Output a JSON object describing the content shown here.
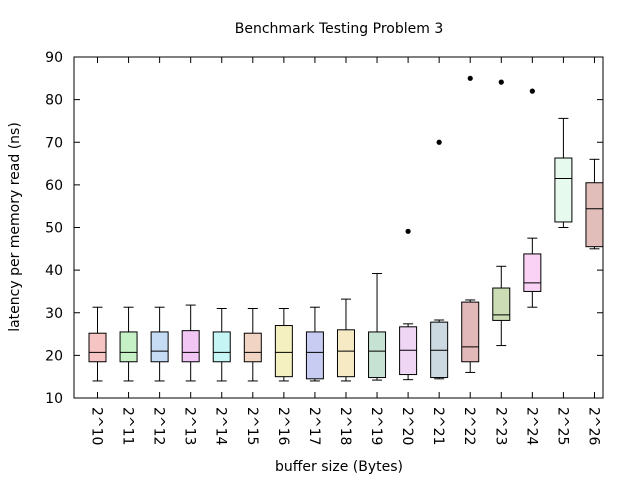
{
  "chart_data": {
    "type": "boxplot",
    "title": "Benchmark Testing Problem 3",
    "xlabel": "buffer size (Bytes)",
    "ylabel": "latency per memory read (ns)",
    "ylim": [
      10,
      90
    ],
    "yticks": [
      10,
      20,
      30,
      40,
      50,
      60,
      70,
      80,
      90
    ],
    "grid": false,
    "categories": [
      "2^10",
      "2^11",
      "2^12",
      "2^13",
      "2^14",
      "2^15",
      "2^16",
      "2^17",
      "2^18",
      "2^19",
      "2^20",
      "2^21",
      "2^22",
      "2^23",
      "2^24",
      "2^25",
      "2^26"
    ],
    "boxes": [
      {
        "whisker_low": 14.0,
        "q1": 18.5,
        "median": 20.7,
        "q3": 25.2,
        "whisker_high": 31.3,
        "outliers": [],
        "color": "#f7c4c4"
      },
      {
        "whisker_low": 14.0,
        "q1": 18.5,
        "median": 20.7,
        "q3": 25.5,
        "whisker_high": 31.3,
        "outliers": [],
        "color": "#c6f0c6"
      },
      {
        "whisker_low": 14.0,
        "q1": 18.5,
        "median": 21.0,
        "q3": 25.5,
        "whisker_high": 31.3,
        "outliers": [],
        "color": "#c6dcf5"
      },
      {
        "whisker_low": 14.0,
        "q1": 18.5,
        "median": 20.7,
        "q3": 25.8,
        "whisker_high": 31.8,
        "outliers": [],
        "color": "#f1c6f5"
      },
      {
        "whisker_low": 14.0,
        "q1": 18.5,
        "median": 20.7,
        "q3": 25.5,
        "whisker_high": 31.0,
        "outliers": [],
        "color": "#c6f5f5"
      },
      {
        "whisker_low": 14.0,
        "q1": 18.5,
        "median": 20.7,
        "q3": 25.2,
        "whisker_high": 31.0,
        "outliers": [],
        "color": "#f1d4c4"
      },
      {
        "whisker_low": 14.0,
        "q1": 15.0,
        "median": 20.7,
        "q3": 27.0,
        "whisker_high": 31.0,
        "outliers": [],
        "color": "#f5f0c0"
      },
      {
        "whisker_low": 14.0,
        "q1": 14.5,
        "median": 20.7,
        "q3": 25.5,
        "whisker_high": 31.3,
        "outliers": [],
        "color": "#c8ccf2"
      },
      {
        "whisker_low": 14.0,
        "q1": 15.0,
        "median": 21.0,
        "q3": 26.0,
        "whisker_high": 33.2,
        "outliers": [],
        "color": "#f5eac4"
      },
      {
        "whisker_low": 14.2,
        "q1": 14.8,
        "median": 21.0,
        "q3": 25.5,
        "whisker_high": 39.2,
        "outliers": [],
        "color": "#c6e2d2"
      },
      {
        "whisker_low": 14.3,
        "q1": 15.5,
        "median": 21.2,
        "q3": 26.7,
        "whisker_high": 27.4,
        "outliers": [
          49.1
        ],
        "color": "#efd6f5"
      },
      {
        "whisker_low": 14.5,
        "q1": 14.8,
        "median": 21.2,
        "q3": 27.8,
        "whisker_high": 28.3,
        "outliers": [
          70.0
        ],
        "color": "#ccd9e0"
      },
      {
        "whisker_low": 16.0,
        "q1": 18.5,
        "median": 22.0,
        "q3": 32.5,
        "whisker_high": 33.0,
        "outliers": [
          85.0
        ],
        "color": "#e2b8b8"
      },
      {
        "whisker_low": 22.3,
        "q1": 28.2,
        "median": 29.5,
        "q3": 35.8,
        "whisker_high": 40.9,
        "outliers": [
          84.1
        ],
        "color": "#ccddb5"
      },
      {
        "whisker_low": 31.3,
        "q1": 35.0,
        "median": 37.0,
        "q3": 43.8,
        "whisker_high": 47.5,
        "outliers": [
          82.0
        ],
        "color": "#fad2f5"
      },
      {
        "whisker_low": 50.0,
        "q1": 51.3,
        "median": 61.5,
        "q3": 66.3,
        "whisker_high": 75.6,
        "outliers": [],
        "color": "#e6fbee"
      },
      {
        "whisker_low": 45.0,
        "q1": 45.5,
        "median": 54.4,
        "q3": 60.5,
        "whisker_high": 66.0,
        "outliers": [],
        "color": "#e2bebb"
      }
    ]
  }
}
